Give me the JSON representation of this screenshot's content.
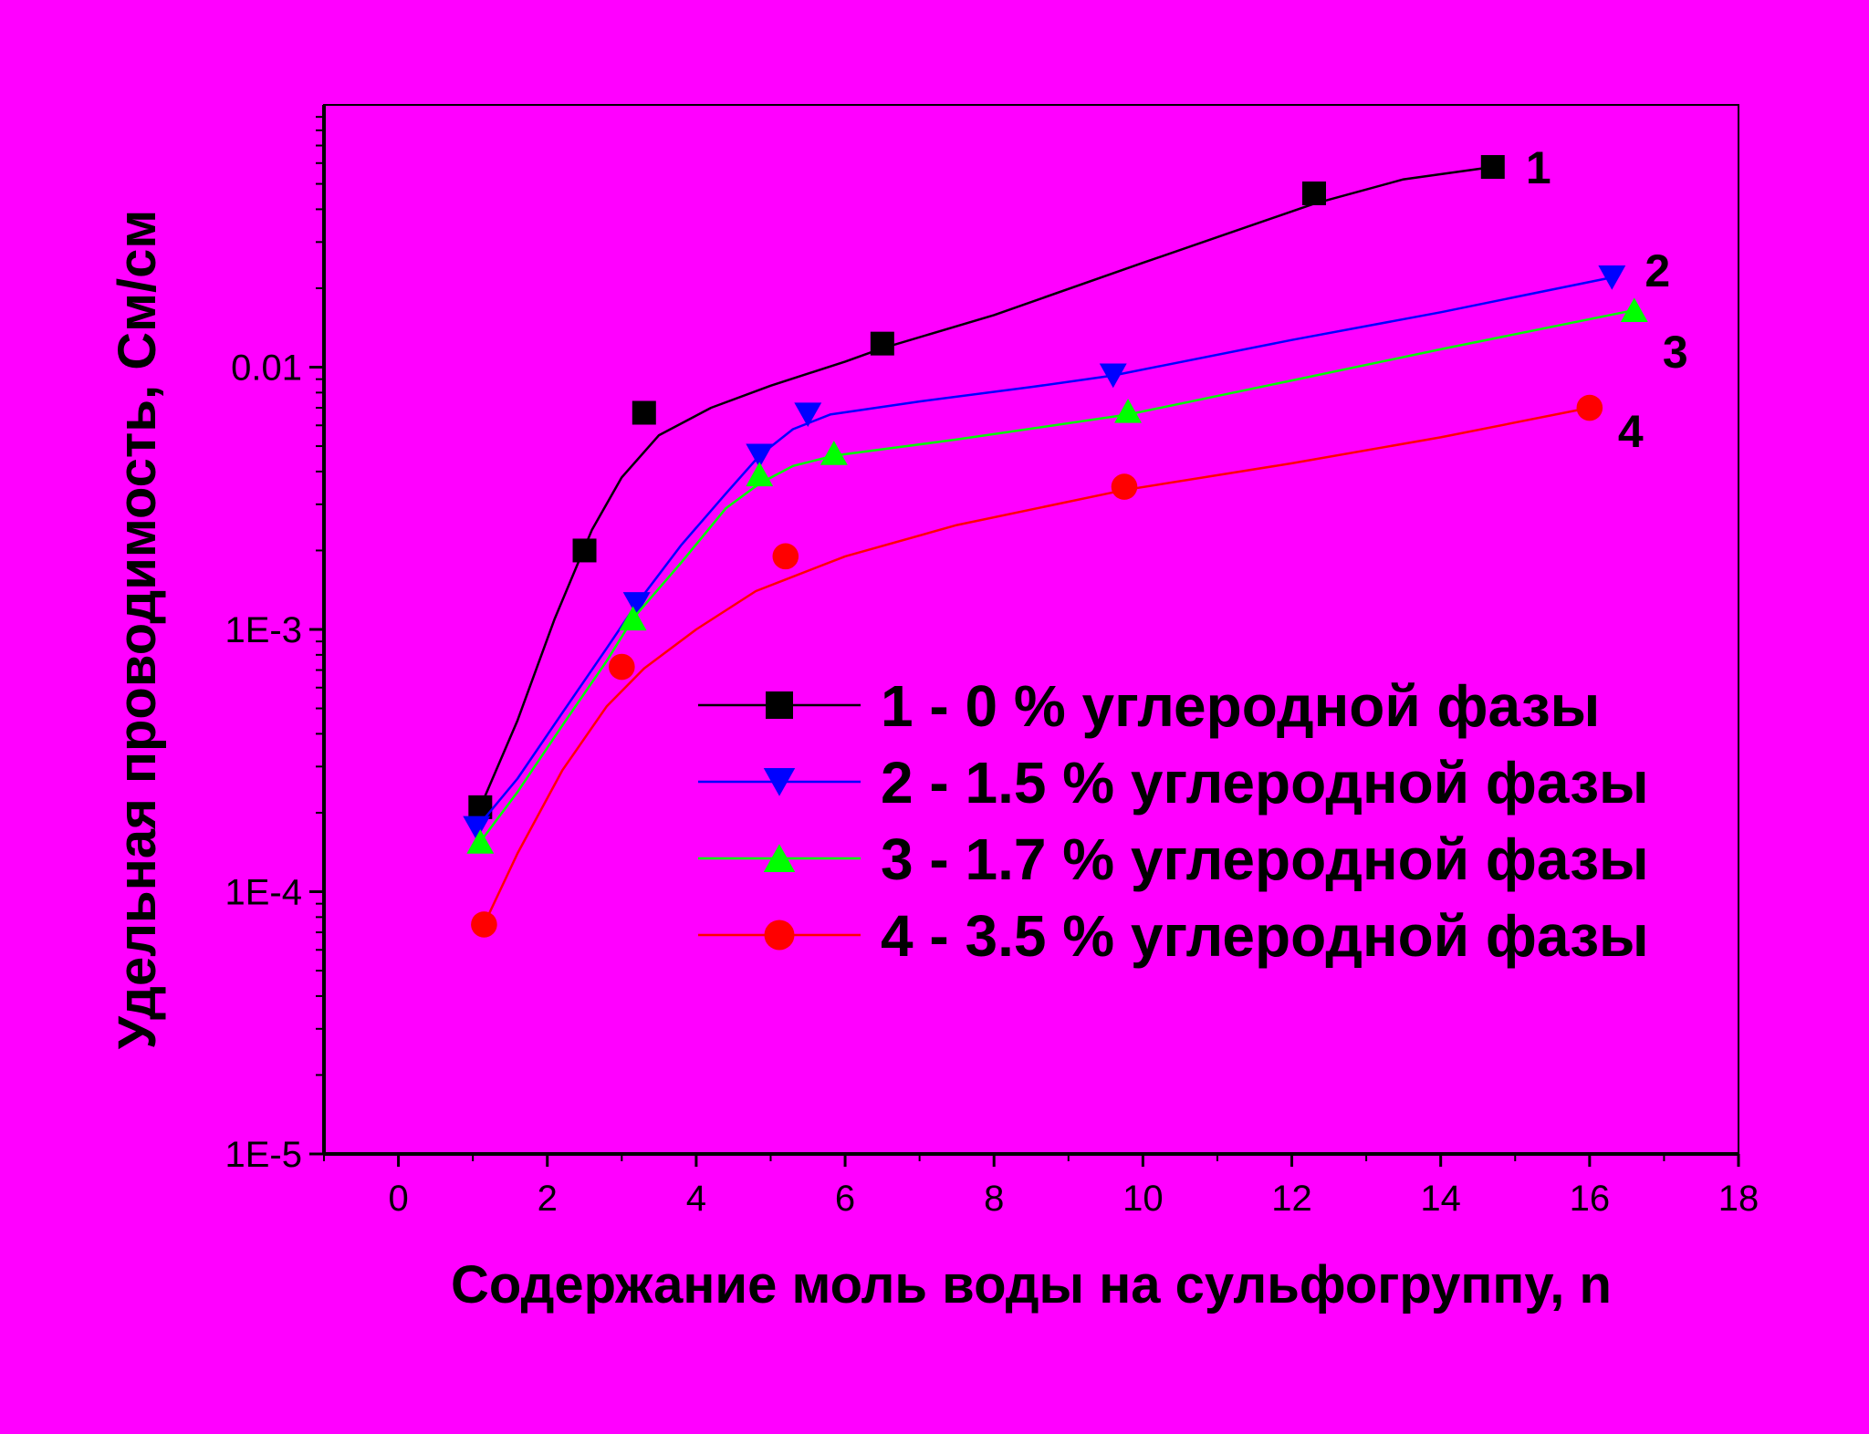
{
  "chart_data": {
    "type": "line",
    "title": "",
    "xlabel": "Содержание моль воды на сульфогруппу, n",
    "ylabel": "Удельная проводимость, См/см",
    "xlim": [
      -1,
      18
    ],
    "ylim": [
      1e-05,
      0.1
    ],
    "yscale": "log",
    "xticks": [
      0,
      2,
      4,
      6,
      8,
      10,
      12,
      14,
      16,
      18
    ],
    "xtick_labels": [
      "0",
      "2",
      "4",
      "6",
      "8",
      "10",
      "12",
      "14",
      "16",
      "18"
    ],
    "yticks": [
      1e-05,
      0.0001,
      0.001,
      0.01
    ],
    "ytick_labels": [
      "1E-5",
      "1E-4",
      "1E-3",
      "0.01"
    ],
    "grid": false,
    "legend_position": "center-right",
    "series": [
      {
        "name": "1 - 0 % углеродной фазы",
        "end_label": "1",
        "color": "#000000",
        "marker": "square",
        "points": [
          [
            1.1,
            0.00021
          ],
          [
            2.5,
            0.002
          ],
          [
            3.3,
            0.0067
          ],
          [
            6.5,
            0.0123
          ],
          [
            12.3,
            0.046
          ],
          [
            14.7,
            0.058
          ]
        ],
        "curve": [
          [
            1.1,
            0.00021
          ],
          [
            1.6,
            0.00045
          ],
          [
            2.1,
            0.0011
          ],
          [
            2.6,
            0.0024
          ],
          [
            3.0,
            0.0038
          ],
          [
            3.5,
            0.0055
          ],
          [
            4.2,
            0.007
          ],
          [
            5.0,
            0.0085
          ],
          [
            6.0,
            0.0105
          ],
          [
            6.5,
            0.0118
          ],
          [
            8.0,
            0.0158
          ],
          [
            10.0,
            0.025
          ],
          [
            12.3,
            0.042
          ],
          [
            13.5,
            0.052
          ],
          [
            14.7,
            0.058
          ]
        ]
      },
      {
        "name": "2 - 1.5 % углеродной фазы",
        "end_label": "2",
        "color": "#0000ff",
        "marker": "triangle-down",
        "points": [
          [
            1.05,
            0.000175
          ],
          [
            3.2,
            0.00125
          ],
          [
            4.85,
            0.0046
          ],
          [
            5.5,
            0.0066
          ],
          [
            9.6,
            0.0093
          ],
          [
            16.3,
            0.022
          ]
        ],
        "curve": [
          [
            1.05,
            0.000175
          ],
          [
            1.6,
            0.00027
          ],
          [
            2.2,
            0.00048
          ],
          [
            2.8,
            0.00085
          ],
          [
            3.2,
            0.00125
          ],
          [
            3.8,
            0.0021
          ],
          [
            4.4,
            0.0033
          ],
          [
            4.85,
            0.0046
          ],
          [
            5.3,
            0.0058
          ],
          [
            5.8,
            0.0066
          ],
          [
            7.0,
            0.0074
          ],
          [
            8.5,
            0.0084
          ],
          [
            9.6,
            0.0093
          ],
          [
            12.0,
            0.0127
          ],
          [
            14.0,
            0.0162
          ],
          [
            16.3,
            0.022
          ]
        ]
      },
      {
        "name": "3 - 1.7 % углеродной фазы",
        "end_label": "3",
        "color": "#00ff00",
        "marker": "triangle-up",
        "points": [
          [
            1.1,
            0.000155
          ],
          [
            3.15,
            0.0011
          ],
          [
            4.85,
            0.0039
          ],
          [
            5.85,
            0.0047
          ],
          [
            9.8,
            0.0068
          ],
          [
            16.6,
            0.0165
          ]
        ],
        "curve": [
          [
            1.1,
            0.000155
          ],
          [
            1.6,
            0.00024
          ],
          [
            2.2,
            0.00043
          ],
          [
            2.8,
            0.00076
          ],
          [
            3.15,
            0.0011
          ],
          [
            3.8,
            0.0018
          ],
          [
            4.4,
            0.0029
          ],
          [
            4.85,
            0.0036
          ],
          [
            5.3,
            0.0042
          ],
          [
            5.85,
            0.0046
          ],
          [
            7.5,
            0.0053
          ],
          [
            9.8,
            0.0066
          ],
          [
            12.0,
            0.0089
          ],
          [
            14.0,
            0.0117
          ],
          [
            16.6,
            0.0165
          ]
        ]
      },
      {
        "name": "4 - 3.5 % углеродной фазы",
        "end_label": "4",
        "color": "#ff0000",
        "marker": "circle",
        "points": [
          [
            1.15,
            7.5e-05
          ],
          [
            3.0,
            0.00072
          ],
          [
            5.2,
            0.0019
          ],
          [
            9.75,
            0.0035
          ],
          [
            16.0,
            0.007
          ]
        ],
        "curve": [
          [
            1.15,
            7.5e-05
          ],
          [
            1.6,
            0.00014
          ],
          [
            2.2,
            0.00029
          ],
          [
            2.8,
            0.00051
          ],
          [
            3.3,
            0.00071
          ],
          [
            4.0,
            0.001
          ],
          [
            4.8,
            0.0014
          ],
          [
            5.2,
            0.00155
          ],
          [
            6.0,
            0.0019
          ],
          [
            7.5,
            0.0025
          ],
          [
            9.75,
            0.0034
          ],
          [
            12.0,
            0.0043
          ],
          [
            14.0,
            0.0054
          ],
          [
            16.0,
            0.007
          ]
        ]
      }
    ]
  }
}
